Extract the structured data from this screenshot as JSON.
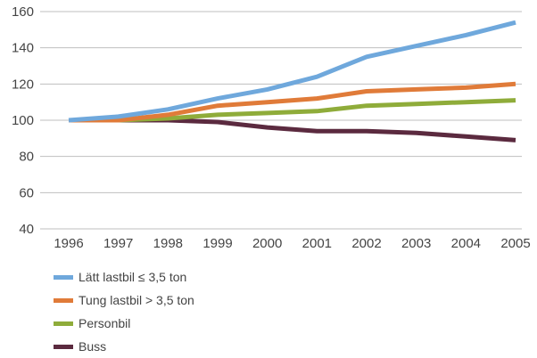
{
  "chart_data": {
    "type": "line",
    "title": "",
    "xlabel": "",
    "ylabel": "",
    "x": [
      "1996",
      "1997",
      "1998",
      "1999",
      "2000",
      "2001",
      "2002",
      "2003",
      "2004",
      "2005"
    ],
    "ylim": [
      40,
      160
    ],
    "yticks": [
      "40",
      "60",
      "80",
      "100",
      "120",
      "140",
      "160"
    ],
    "grid": "horizontal",
    "legend_position": "bottom-left",
    "series": [
      {
        "name": "Lätt lastbil ≤ 3,5 ton",
        "color": "#6fa8dc",
        "values": [
          100,
          102,
          106,
          112,
          117,
          124,
          135,
          141,
          147,
          154
        ]
      },
      {
        "name": "Tung lastbil > 3,5 ton",
        "color": "#e07b39",
        "values": [
          100,
          100,
          103,
          108,
          110,
          112,
          116,
          117,
          118,
          120
        ]
      },
      {
        "name": "Personbil",
        "color": "#8fac3a",
        "values": [
          100,
          100,
          101,
          103,
          104,
          105,
          108,
          109,
          110,
          111
        ]
      },
      {
        "name": "Buss",
        "color": "#5b2a3f",
        "values": [
          100,
          100,
          100,
          99,
          96,
          94,
          94,
          93,
          91,
          89
        ]
      }
    ]
  }
}
